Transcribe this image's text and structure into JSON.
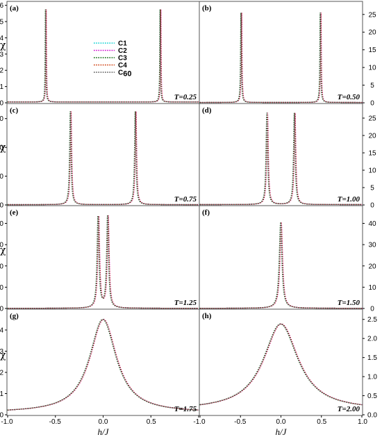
{
  "chart_data": {
    "type": "line",
    "xlabel": "h/J",
    "ylabel": "χ",
    "xlim": [
      -1.0,
      1.0
    ],
    "x_ticks": [
      "-1.0",
      "-0.5",
      "0.0",
      "0.5",
      "1.0"
    ],
    "legend": {
      "placement": "left-center of panel (a)",
      "entries": [
        {
          "label": "C1",
          "color": "#00d0d0",
          "style": "dotted"
        },
        {
          "label": "C2",
          "color": "#cc00cc",
          "style": "dotted"
        },
        {
          "label": "C3",
          "color": "#006400",
          "style": "dotted"
        },
        {
          "label": "C4",
          "color": "#cc3300",
          "style": "dotted"
        },
        {
          "label": "C",
          "sub": "60",
          "color": "#555555",
          "style": "dotted"
        }
      ]
    },
    "panels": [
      {
        "label": "(a)",
        "T": "T=0.25",
        "kind": "peaks",
        "peaks": [
          -0.6,
          0.6
        ],
        "peak_height": 5.75,
        "base": 0.05,
        "width": 0.004,
        "ylim": [
          0,
          6.2
        ],
        "yticks": [
          "0",
          "1",
          "2",
          "3",
          "4",
          "5",
          "6"
        ],
        "axis_side": "left"
      },
      {
        "label": "(b)",
        "T": "T=0.50",
        "kind": "peaks",
        "peaks": [
          -0.49,
          0.49
        ],
        "peak_height": 25.5,
        "base": 0.1,
        "width": 0.006,
        "ylim": [
          0,
          28.5
        ],
        "yticks": [
          "0",
          "5",
          "10",
          "15",
          "20",
          "25"
        ],
        "axis_side": "right"
      },
      {
        "label": "(c)",
        "T": "T=0.75",
        "kind": "peaks",
        "peaks": [
          -0.34,
          0.34
        ],
        "peak_height": 32.5,
        "base": 0.1,
        "width": 0.009,
        "ylim": [
          0,
          35
        ],
        "yticks": [
          "0",
          "10",
          "20",
          "30"
        ],
        "axis_side": "left"
      },
      {
        "label": "(d)",
        "T": "T=1.00",
        "kind": "peaks",
        "peaks": [
          -0.17,
          0.17
        ],
        "peak_height": 26.5,
        "base": 0.1,
        "width": 0.012,
        "ylim": [
          0,
          29
        ],
        "yticks": [
          "0",
          "5",
          "10",
          "15",
          "20",
          "25"
        ],
        "axis_side": "right"
      },
      {
        "label": "(e)",
        "T": "T=1.25",
        "kind": "peaks",
        "peaks": [
          -0.05,
          0.05
        ],
        "peak_height": 43.5,
        "base": 0.1,
        "width": 0.012,
        "ylim": [
          0,
          48
        ],
        "yticks": [
          "0",
          "10",
          "20",
          "30",
          "40"
        ],
        "axis_side": "left"
      },
      {
        "label": "(f)",
        "T": "T=1.50",
        "kind": "peaks",
        "peaks": [
          0.0
        ],
        "peak_height": 40,
        "base": 0.1,
        "width": 0.02,
        "ylim": [
          0,
          48
        ],
        "yticks": [
          "0",
          "10",
          "20",
          "30",
          "40"
        ],
        "axis_side": "right"
      },
      {
        "label": "(g)",
        "T": "T=1.75",
        "kind": "broad",
        "peaks": [
          0.0
        ],
        "peak_height": 4.5,
        "base": 0.1,
        "width": 0.17,
        "ylim": [
          0,
          4.95
        ],
        "yticks": [
          "0",
          "1",
          "2",
          "3",
          "4"
        ],
        "axis_side": "left"
      },
      {
        "label": "(h)",
        "T": "T=2.00",
        "kind": "broad",
        "peaks": [
          0.0
        ],
        "peak_height": 2.38,
        "base": 0.12,
        "width": 0.26,
        "ylim": [
          0,
          2.75
        ],
        "yticks": [
          "0.0",
          "0.5",
          "1.0",
          "1.5",
          "2.0",
          "2.5"
        ],
        "axis_side": "right"
      }
    ]
  }
}
